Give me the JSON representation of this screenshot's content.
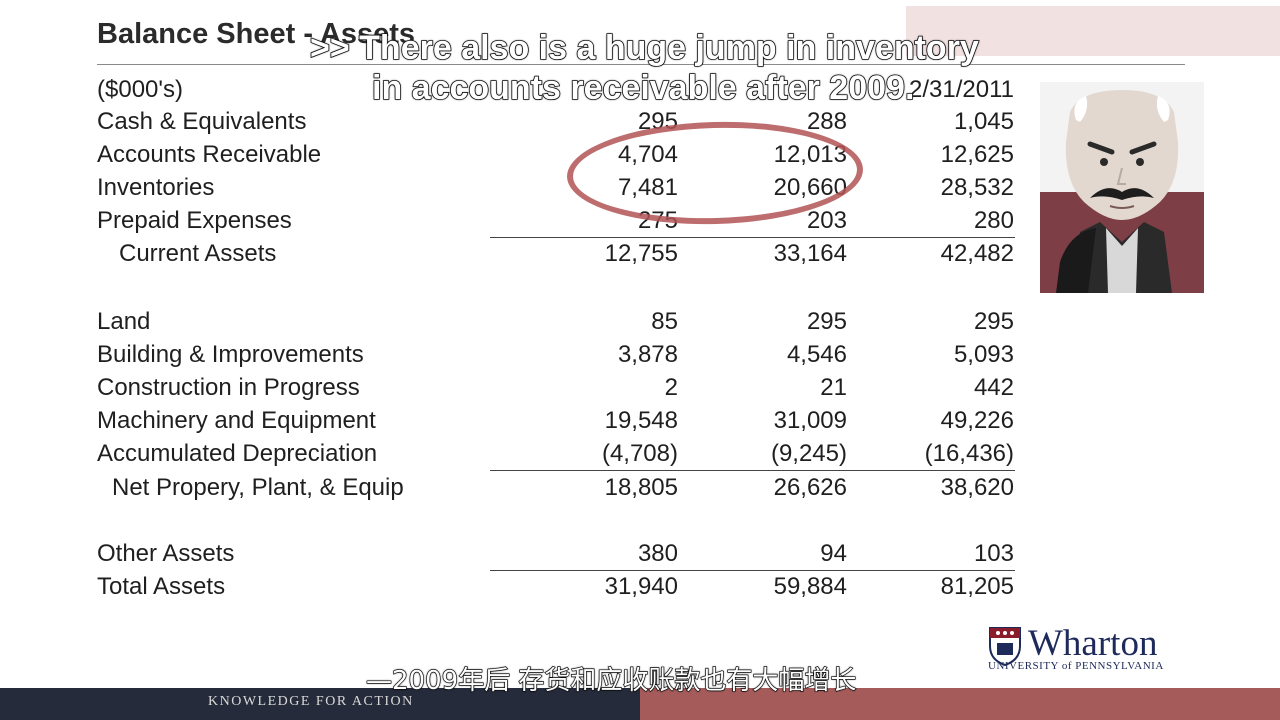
{
  "slide": {
    "title": "Balance Sheet - Assets",
    "units_label": "($000's)",
    "header_year_visible": "2/31/2011",
    "rows_current": [
      {
        "label": "Cash & Equivalents",
        "v1": "295",
        "v2": "288",
        "v3": "1,045"
      },
      {
        "label": "Accounts Receivable",
        "v1": "4,704",
        "v2": "12,013",
        "v3": "12,625"
      },
      {
        "label": "Inventories",
        "v1": "7,481",
        "v2": "20,660",
        "v3": "28,532"
      },
      {
        "label": "Prepaid Expenses",
        "v1": "275",
        "v2": "203",
        "v3": "280"
      }
    ],
    "current_total": {
      "label": "Current Assets",
      "v1": "12,755",
      "v2": "33,164",
      "v3": "42,482"
    },
    "rows_fixed": [
      {
        "label": "Land",
        "v1": "85",
        "v2": "295",
        "v3": "295"
      },
      {
        "label": "Building & Improvements",
        "v1": "3,878",
        "v2": "4,546",
        "v3": "5,093"
      },
      {
        "label": "Construction in Progress",
        "v1": "2",
        "v2": "21",
        "v3": "442"
      },
      {
        "label": "Machinery and Equipment",
        "v1": "19,548",
        "v2": "31,009",
        "v3": "49,226"
      },
      {
        "label": "Accumulated Depreciation",
        "v1": "(4,708)",
        "v2": "(9,245)",
        "v3": "(16,436)"
      }
    ],
    "fixed_total": {
      "label": "Net Propery, Plant, & Equip",
      "v1": "18,805",
      "v2": "26,626",
      "v3": "38,620"
    },
    "other": {
      "label": "Other Assets",
      "v1": "380",
      "v2": "94",
      "v3": "103"
    },
    "total": {
      "label": "Total Assets",
      "v1": "31,940",
      "v2": "59,884",
      "v3": "81,205"
    }
  },
  "caption_en": {
    "line1": ">> There also is a huge jump in inventory",
    "line2": "in accounts receivable after 2009."
  },
  "caption_cn": "—2009年后 存货和应收账款也有大幅增长",
  "branding": {
    "logo_word": "Wharton",
    "logo_sub": "UNIVERSITY of PENNSYLVANIA",
    "tagline": "KNOWLEDGE FOR ACTION"
  },
  "colors": {
    "highlight_ellipse": "#b25454",
    "footer_left": "#252b3b",
    "footer_right": "#a65b5b",
    "logo_navy": "#1e2a5a"
  }
}
